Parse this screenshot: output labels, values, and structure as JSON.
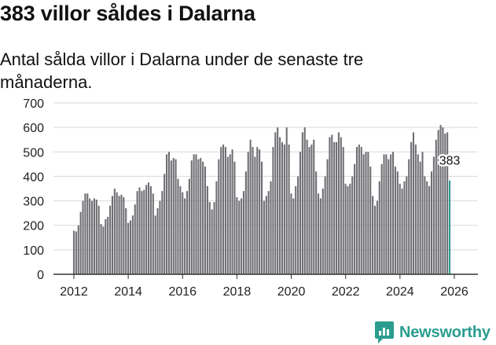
{
  "title": "383 villor såldes i Dalarna",
  "subtitle": "Antal sålda villor i Dalarna under de senaste tre månaderna.",
  "brand": {
    "name": "Newsworthy",
    "icon": "newsworthy-logo-icon",
    "color": "#2a9d8f"
  },
  "chart_data": {
    "type": "bar",
    "title": "383 villor såldes i Dalarna",
    "subtitle": "Antal sålda villor i Dalarna under de senaste tre månaderna.",
    "xlabel": "",
    "ylabel": "",
    "ylim": [
      0,
      700
    ],
    "yticks": [
      0,
      100,
      200,
      300,
      400,
      500,
      600,
      700
    ],
    "xticks": [
      2012,
      2014,
      2016,
      2018,
      2020,
      2022,
      2024,
      2026
    ],
    "x_start": 2012.0,
    "x_step": 0.0833,
    "grid": "horizontal",
    "bar_color": "#6e6e73",
    "highlight_color": "#2a9d8f",
    "values": [
      178,
      175,
      200,
      255,
      300,
      330,
      330,
      310,
      300,
      310,
      305,
      280,
      205,
      195,
      225,
      235,
      280,
      320,
      350,
      335,
      320,
      325,
      315,
      270,
      210,
      220,
      240,
      285,
      340,
      355,
      340,
      345,
      365,
      375,
      360,
      330,
      240,
      270,
      300,
      340,
      410,
      490,
      500,
      465,
      475,
      470,
      390,
      360,
      335,
      310,
      340,
      390,
      465,
      490,
      490,
      470,
      475,
      460,
      440,
      360,
      295,
      265,
      295,
      380,
      470,
      520,
      530,
      520,
      480,
      490,
      510,
      460,
      315,
      300,
      310,
      340,
      420,
      500,
      550,
      520,
      480,
      520,
      510,
      460,
      300,
      320,
      340,
      380,
      520,
      580,
      600,
      560,
      540,
      530,
      600,
      530,
      330,
      310,
      360,
      400,
      500,
      580,
      600,
      550,
      520,
      530,
      550,
      420,
      330,
      310,
      350,
      400,
      470,
      560,
      570,
      540,
      540,
      580,
      560,
      520,
      370,
      360,
      370,
      400,
      450,
      520,
      530,
      520,
      490,
      500,
      500,
      440,
      320,
      280,
      300,
      380,
      450,
      490,
      490,
      470,
      490,
      500,
      440,
      420,
      370,
      350,
      380,
      400,
      470,
      540,
      580,
      530,
      490,
      460,
      500,
      400,
      380,
      360,
      420,
      480,
      550,
      590,
      610,
      600,
      575,
      580
    ],
    "highlight": {
      "value": 383,
      "label": "383"
    }
  }
}
